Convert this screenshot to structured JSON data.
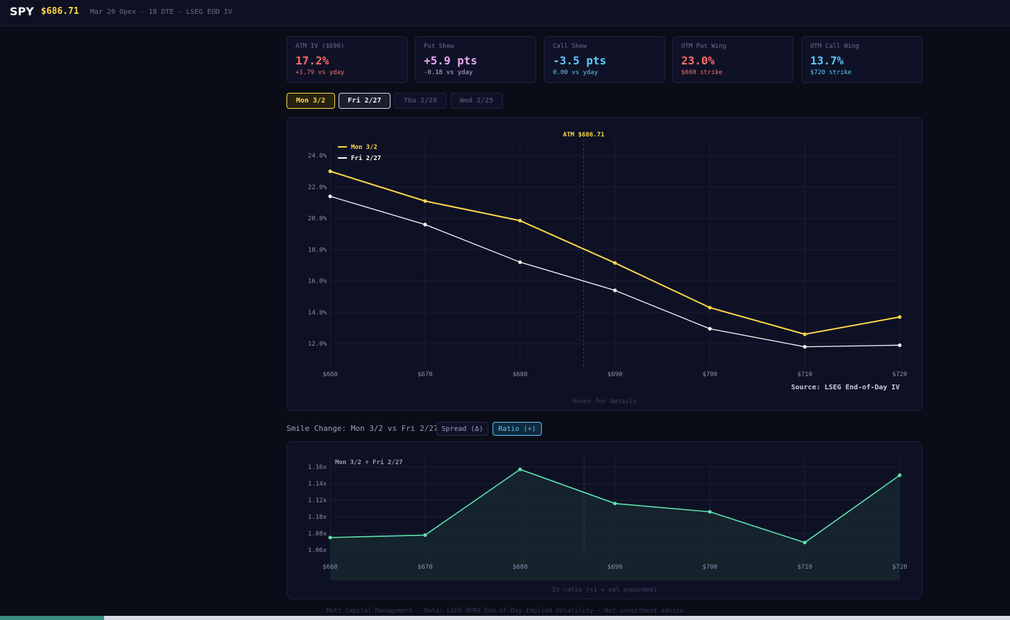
{
  "header": {
    "ticker": "SPY",
    "price": "$686.71",
    "meta": "Mar 20 Opex · 18 DTE · LSEG EOD IV"
  },
  "cards": [
    {
      "label": "ATM IV ($690)",
      "value": "17.2%",
      "sub": "+1.79 vs yday",
      "value_color": "#ff6b6b",
      "sub_color": "#ff6b6b"
    },
    {
      "label": "Put Skew",
      "value": "+5.9 pts",
      "sub": "-0.18 vs yday",
      "value_color": "#e9a6f5",
      "sub_color": "#c9b3e0"
    },
    {
      "label": "Call Skew",
      "value": "-3.5 pts",
      "sub": "0.00 vs yday",
      "value_color": "#5ec8ff",
      "sub_color": "#5ec8ff"
    },
    {
      "label": "OTM Put Wing",
      "value": "23.0%",
      "sub": "$660 strike",
      "value_color": "#ff6b6b",
      "sub_color": "#ff6b6b"
    },
    {
      "label": "OTM Call Wing",
      "value": "13.7%",
      "sub": "$720 strike",
      "value_color": "#5ec8ff",
      "sub_color": "#5ec8ff"
    }
  ],
  "date_tabs": [
    "Mon 3/2",
    "Fri 2/27",
    "Thu 2/26",
    "Wed 2/25"
  ],
  "main_chart_hint": "Hover for details",
  "smile": {
    "title": "Smile Change: Mon 3/2 vs Fri 2/27",
    "spread_label": "Spread (Δ)",
    "ratio_label": "Ratio (÷)",
    "hint": "IV ratio (>1 = vol expanded)"
  },
  "footer": "Mott Capital Management · Data: LSEG OPRA End-of-Day Implied Volatility · Not investment advice",
  "colors": {
    "accent": "#ffd84a",
    "series_prev": "#ffffff",
    "ratio": "#5ee6b0",
    "put": "#ff6b6b",
    "call": "#5ec8ff"
  },
  "chart_data": [
    {
      "type": "line",
      "title": "",
      "x": [
        660,
        670,
        680,
        690,
        700,
        710,
        720
      ],
      "xticklabels": [
        "$660",
        "$670",
        "$680",
        "$690",
        "$700",
        "$710",
        "$720"
      ],
      "series": [
        {
          "name": "Mon 3/2",
          "values": [
            23.0,
            21.1,
            19.85,
            17.15,
            14.3,
            12.6,
            13.7
          ]
        },
        {
          "name": "Fri 2/27",
          "values": [
            21.4,
            19.6,
            17.2,
            15.4,
            12.95,
            11.8,
            11.9
          ]
        }
      ],
      "ylim": [
        10.5,
        25.0
      ],
      "yticks": [
        12,
        14,
        16,
        18,
        20,
        22,
        24
      ],
      "yticklabels": [
        "12.0%",
        "14.0%",
        "16.0%",
        "18.0%",
        "20.0%",
        "22.0%",
        "24.0%"
      ],
      "xlabel": "",
      "ylabel": "",
      "annotation": {
        "label": "ATM $686.71",
        "x": 686.71
      },
      "source": "Source: LSEG End-of-Day IV",
      "grid": true,
      "legend": "top-left"
    },
    {
      "type": "area",
      "title": "Mon 3/2 ÷ Fri 2/27",
      "x": [
        660,
        670,
        680,
        690,
        700,
        710,
        720
      ],
      "xticklabels": [
        "$660",
        "$670",
        "$680",
        "$690",
        "$700",
        "$710",
        "$720"
      ],
      "series": [
        {
          "name": "Mon 3/2 ÷ Fri 2/27",
          "values": [
            1.075,
            1.078,
            1.157,
            1.116,
            1.106,
            1.069,
            1.15
          ]
        }
      ],
      "ylim": [
        1.05,
        1.17
      ],
      "yticks": [
        1.06,
        1.08,
        1.1,
        1.12,
        1.14,
        1.16
      ],
      "yticklabels": [
        "1.06x",
        "1.08x",
        "1.10x",
        "1.12x",
        "1.14x",
        "1.16x"
      ],
      "marker_x": 686.71,
      "grid": true
    }
  ]
}
